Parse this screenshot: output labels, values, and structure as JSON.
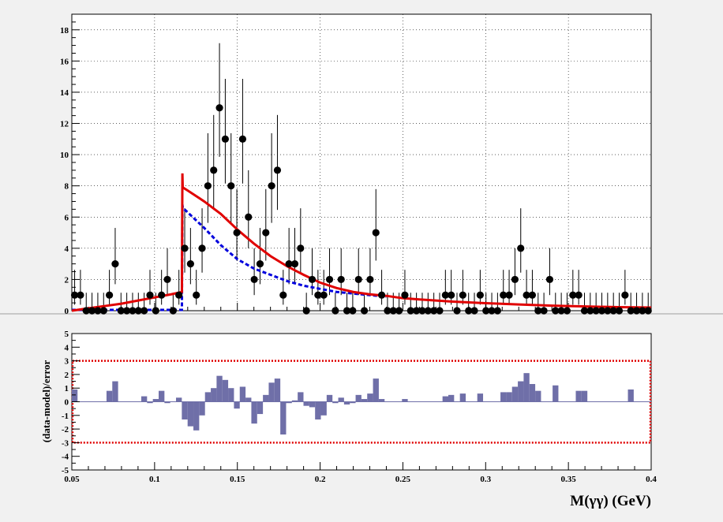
{
  "chart_data": [
    {
      "type": "scatter",
      "panel": "top",
      "title": "",
      "xlim": [
        0.05,
        0.4
      ],
      "ylim": [
        0,
        19
      ],
      "yticks": [
        0,
        2,
        4,
        6,
        8,
        10,
        12,
        14,
        16,
        18
      ],
      "grid": true,
      "colors": {
        "data": "#000000",
        "total_fit": "#e00000",
        "component_fit": "#0000dd"
      },
      "data_points": {
        "x": [
          0.0517,
          0.0552,
          0.0587,
          0.0622,
          0.0657,
          0.0692,
          0.0727,
          0.0762,
          0.0797,
          0.0832,
          0.0867,
          0.0902,
          0.0937,
          0.0972,
          0.1007,
          0.1042,
          0.1077,
          0.1112,
          0.1147,
          0.1182,
          0.1217,
          0.1252,
          0.1287,
          0.1322,
          0.1357,
          0.1392,
          0.1427,
          0.1462,
          0.1497,
          0.1532,
          0.1567,
          0.1602,
          0.1637,
          0.1672,
          0.1707,
          0.1742,
          0.1777,
          0.1812,
          0.1847,
          0.1882,
          0.1917,
          0.1952,
          0.1987,
          0.2022,
          0.2057,
          0.2092,
          0.2127,
          0.2162,
          0.2197,
          0.2232,
          0.2267,
          0.2302,
          0.2337,
          0.2372,
          0.2407,
          0.2442,
          0.2477,
          0.2512,
          0.2547,
          0.2582,
          0.2617,
          0.2652,
          0.2687,
          0.2722,
          0.2757,
          0.2792,
          0.2827,
          0.2862,
          0.2897,
          0.2932,
          0.2967,
          0.3002,
          0.3037,
          0.3072,
          0.3107,
          0.3142,
          0.3177,
          0.3212,
          0.3247,
          0.3282,
          0.3317,
          0.3352,
          0.3387,
          0.3422,
          0.3457,
          0.3492,
          0.3527,
          0.3562,
          0.3597,
          0.3632,
          0.3667,
          0.3702,
          0.3737,
          0.3772,
          0.3807,
          0.3842,
          0.3877,
          0.3912,
          0.3947,
          0.3982
        ],
        "y": [
          1,
          1,
          0,
          0,
          0,
          0,
          1,
          3,
          0,
          0,
          0,
          0,
          0,
          1,
          0,
          1,
          2,
          0,
          1,
          4,
          3,
          1,
          4,
          8,
          9,
          13,
          11,
          8,
          5,
          11,
          6,
          2,
          3,
          5,
          8,
          9,
          1,
          3,
          3,
          4,
          0,
          2,
          1,
          1,
          2,
          0,
          2,
          0,
          0,
          2,
          0,
          2,
          5,
          1,
          0,
          0,
          0,
          1,
          0,
          0,
          0,
          0,
          0,
          0,
          1,
          1,
          0,
          1,
          0,
          0,
          1,
          0,
          0,
          0,
          1,
          1,
          2,
          4,
          1,
          1,
          0,
          0,
          2,
          0,
          0,
          0,
          1,
          1,
          0,
          0,
          0,
          0,
          0,
          0,
          0,
          1,
          0,
          0,
          0,
          0
        ]
      },
      "total_fit": {
        "x": [
          0.05,
          0.06,
          0.07,
          0.08,
          0.09,
          0.1,
          0.11,
          0.1165,
          0.1168,
          0.117,
          0.12,
          0.13,
          0.14,
          0.15,
          0.16,
          0.17,
          0.18,
          0.19,
          0.2,
          0.21,
          0.22,
          0.23,
          0.24,
          0.25,
          0.26,
          0.28,
          0.3,
          0.32,
          0.34,
          0.36,
          0.38,
          0.4
        ],
        "y": [
          0.0,
          0.15,
          0.3,
          0.45,
          0.65,
          0.85,
          1.05,
          1.2,
          8.8,
          7.9,
          7.7,
          7.0,
          6.2,
          5.2,
          4.3,
          3.5,
          2.85,
          2.3,
          1.8,
          1.45,
          1.2,
          1.05,
          0.95,
          0.8,
          0.72,
          0.58,
          0.48,
          0.4,
          0.32,
          0.27,
          0.23,
          0.2
        ]
      },
      "component_fit": {
        "x": [
          0.05,
          0.06,
          0.07,
          0.08,
          0.09,
          0.1,
          0.11,
          0.1165,
          0.1168,
          0.117,
          0.12,
          0.13,
          0.14,
          0.15,
          0.16,
          0.17,
          0.18,
          0.19,
          0.2,
          0.21,
          0.22,
          0.23,
          0.24
        ],
        "y": [
          0.05,
          0.05,
          0.05,
          0.05,
          0.05,
          0.05,
          0.05,
          0.05,
          6.8,
          6.6,
          6.3,
          5.3,
          4.2,
          3.3,
          2.7,
          2.3,
          1.9,
          1.6,
          1.4,
          1.2,
          1.1,
          1.0,
          0.9
        ]
      }
    },
    {
      "type": "bar",
      "panel": "bottom",
      "xlim": [
        0.05,
        0.4
      ],
      "ylim": [
        -5,
        5
      ],
      "yticks": [
        -5,
        -4,
        -3,
        -2,
        -1,
        0,
        1,
        2,
        3,
        4,
        5
      ],
      "xticks": [
        0.05,
        0.1,
        0.15,
        0.2,
        0.25,
        0.3,
        0.35,
        0.4
      ],
      "xtick_labels": [
        "0.05",
        "0.1",
        "0.15",
        "0.2",
        "0.25",
        "0.3",
        "0.35",
        "0.4"
      ],
      "ylabel": "(data-model)/error",
      "xlabel": "M(γγ) (GeV)",
      "band": [
        -3,
        3
      ],
      "colors": {
        "bars": "#6f6fa8",
        "band": "#e00000"
      },
      "bar_width": 0.0035,
      "x": [
        0.0517,
        0.0727,
        0.0762,
        0.0937,
        0.0972,
        0.1007,
        0.1042,
        0.1077,
        0.1147,
        0.1182,
        0.1217,
        0.1252,
        0.1287,
        0.1322,
        0.1357,
        0.1392,
        0.1427,
        0.1462,
        0.1497,
        0.1532,
        0.1567,
        0.1602,
        0.1637,
        0.1672,
        0.1707,
        0.1742,
        0.1777,
        0.1812,
        0.1847,
        0.1882,
        0.1917,
        0.1952,
        0.1987,
        0.2022,
        0.2057,
        0.2092,
        0.2127,
        0.2162,
        0.2197,
        0.2232,
        0.2267,
        0.2302,
        0.2337,
        0.2372,
        0.2512,
        0.2757,
        0.2792,
        0.2862,
        0.2967,
        0.3107,
        0.3142,
        0.3177,
        0.3212,
        0.3247,
        0.3282,
        0.3317,
        0.3422,
        0.3562,
        0.3597,
        0.3877
      ],
      "values": [
        0.9,
        0.8,
        1.5,
        0.4,
        -0.1,
        0.2,
        0.8,
        -0.1,
        0.3,
        -1.3,
        -1.8,
        -2.1,
        -1.0,
        0.7,
        1.0,
        1.9,
        1.6,
        1.0,
        -0.5,
        1.1,
        0.3,
        -1.6,
        -0.9,
        0.5,
        1.4,
        1.7,
        -2.4,
        -0.1,
        0.1,
        0.7,
        -0.3,
        -0.4,
        -1.3,
        -1.0,
        0.5,
        -0.1,
        0.3,
        -0.2,
        -0.1,
        0.5,
        0.2,
        0.6,
        1.7,
        0.2,
        0.2,
        0.4,
        0.5,
        0.6,
        0.6,
        0.7,
        0.7,
        1.1,
        1.5,
        2.1,
        1.3,
        0.8,
        1.2,
        0.8,
        0.8,
        0.9
      ]
    }
  ]
}
